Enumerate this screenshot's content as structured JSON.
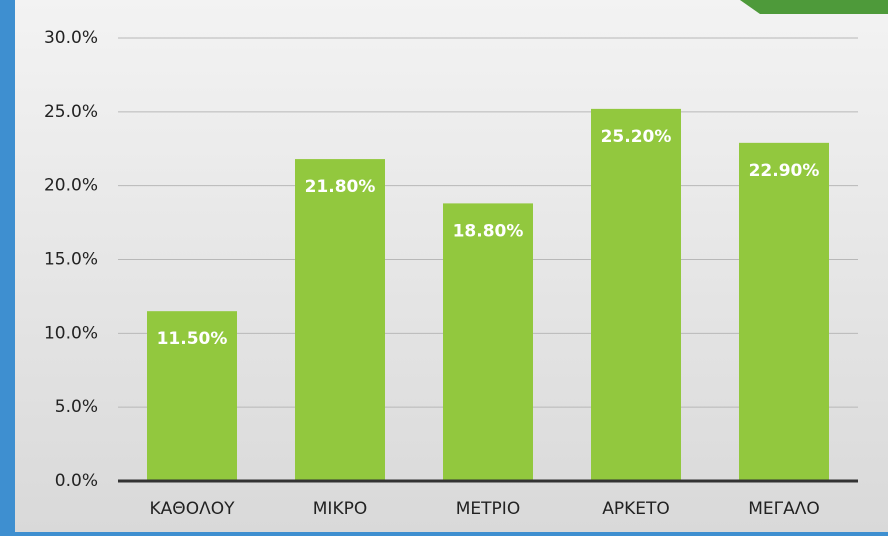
{
  "chart_data": {
    "type": "bar",
    "categories": [
      "ΚΑΘΟΛΟΥ",
      "ΜΙΚΡΟ",
      "ΜΕΤΡΙΟ",
      "ΑΡΚΕΤΟ",
      "ΜΕΓΑΛΟ"
    ],
    "values": [
      11.5,
      21.8,
      18.8,
      25.2,
      22.9
    ],
    "value_labels": [
      "11.50%",
      "21.80%",
      "18.80%",
      "25.20%",
      "22.90%"
    ],
    "color": "#92c83e",
    "ylim": [
      0,
      30
    ],
    "yticks": [
      {
        "value": 0,
        "label": "0.0%"
      },
      {
        "value": 5,
        "label": "5.0%"
      },
      {
        "value": 10,
        "label": "10.0%"
      },
      {
        "value": 15,
        "label": "15.0%"
      },
      {
        "value": 20,
        "label": "20.0%"
      },
      {
        "value": 25,
        "label": "25.0%"
      },
      {
        "value": 30,
        "label": "30.0%"
      }
    ],
    "grid": true
  }
}
